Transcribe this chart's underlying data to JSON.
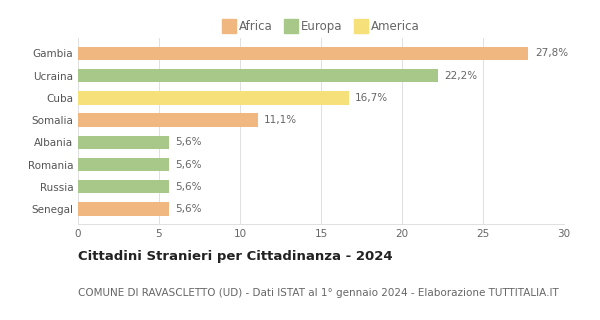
{
  "categories": [
    "Senegal",
    "Russia",
    "Romania",
    "Albania",
    "Somalia",
    "Cuba",
    "Ucraina",
    "Gambia"
  ],
  "values": [
    5.6,
    5.6,
    5.6,
    5.6,
    11.1,
    16.7,
    22.2,
    27.8
  ],
  "labels": [
    "5,6%",
    "5,6%",
    "5,6%",
    "5,6%",
    "11,1%",
    "16,7%",
    "22,2%",
    "27,8%"
  ],
  "colors": [
    "#f0b880",
    "#a8c88a",
    "#a8c88a",
    "#a8c88a",
    "#f0b880",
    "#f5e07a",
    "#a8c88a",
    "#f0b880"
  ],
  "legend_items": [
    {
      "label": "Africa",
      "color": "#f0b880"
    },
    {
      "label": "Europa",
      "color": "#a8c88a"
    },
    {
      "label": "America",
      "color": "#f5e07a"
    }
  ],
  "xlim": [
    0,
    30
  ],
  "xticks": [
    0,
    5,
    10,
    15,
    20,
    25,
    30
  ],
  "title": "Cittadini Stranieri per Cittadinanza - 2024",
  "subtitle": "COMUNE DI RAVASCLETTO (UD) - Dati ISTAT al 1° gennaio 2024 - Elaborazione TUTTITALIA.IT",
  "background_color": "#ffffff",
  "grid_color": "#e0e0e0",
  "bar_height": 0.6,
  "title_fontsize": 9.5,
  "subtitle_fontsize": 7.5,
  "label_fontsize": 7.5,
  "tick_fontsize": 7.5,
  "legend_fontsize": 8.5
}
